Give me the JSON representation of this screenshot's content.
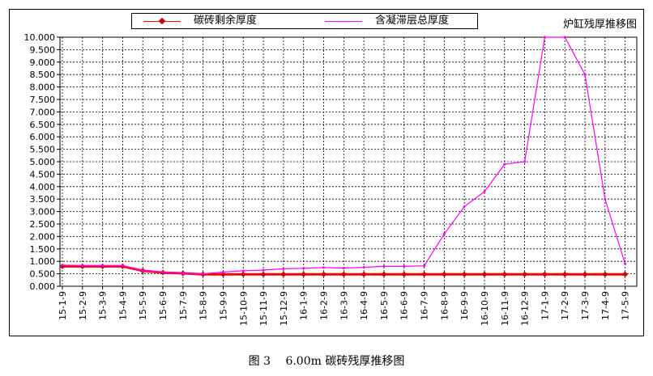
{
  "legend": {
    "series1_label": "碳砖剩余厚度",
    "series2_label": "含凝滞层总厚度"
  },
  "chart_title": "炉缸残厚推移图",
  "figure_caption": "图 3　 6.00m 碳砖残厚推移图",
  "colors": {
    "series1": "#ff0000",
    "series2": "#ff00ff",
    "grid": "#000000"
  },
  "chart_data": {
    "type": "line",
    "title": "炉缸残厚推移图",
    "xlabel": "",
    "ylabel": "",
    "ylim": [
      0,
      10
    ],
    "grid": true,
    "legend_position": "top",
    "y_ticks": [
      "0.000",
      "0.500",
      "1.000",
      "1.500",
      "2.000",
      "2.500",
      "3.000",
      "3.500",
      "4.000",
      "4.500",
      "5.000",
      "5.500",
      "6.000",
      "6.500",
      "7.000",
      "7.500",
      "8.000",
      "8.500",
      "9.000",
      "9.500",
      "10.000"
    ],
    "x_ticks": [
      "15-1-9",
      "15-2-9",
      "15-3-9",
      "15-4-9",
      "15-5-9",
      "15-6-9",
      "15-7-9",
      "15-8-9",
      "15-9-9",
      "15-10-9",
      "15-11-9",
      "15-12-9",
      "16-1-9",
      "16-2-9",
      "16-3-9",
      "16-4-9",
      "16-5-9",
      "16-6-9",
      "16-7-9",
      "16-8-9",
      "16-9-9",
      "16-10-9",
      "16-11-9",
      "16-12-9",
      "17-1-9",
      "17-2-9",
      "17-3-9",
      "17-4-9",
      "17-5-9"
    ],
    "series": [
      {
        "name": "碳砖剩余厚度",
        "points": [
          [
            "15-1-9",
            0.8
          ],
          [
            "15-2-9",
            0.8
          ],
          [
            "15-3-9",
            0.8
          ],
          [
            "15-4-9",
            0.8
          ],
          [
            "15-5-9",
            0.62
          ],
          [
            "15-6-9",
            0.55
          ],
          [
            "15-7-9",
            0.52
          ],
          [
            "15-8-9",
            0.48
          ],
          [
            "15-9-9",
            0.48
          ],
          [
            "15-10-9",
            0.48
          ],
          [
            "15-11-9",
            0.48
          ],
          [
            "15-12-9",
            0.48
          ],
          [
            "16-1-9",
            0.48
          ],
          [
            "16-2-9",
            0.48
          ],
          [
            "16-3-9",
            0.48
          ],
          [
            "16-4-9",
            0.48
          ],
          [
            "16-5-9",
            0.48
          ],
          [
            "16-6-9",
            0.48
          ],
          [
            "16-7-9",
            0.48
          ],
          [
            "16-8-9",
            0.48
          ],
          [
            "16-9-9",
            0.48
          ],
          [
            "16-10-9",
            0.48
          ],
          [
            "16-11-9",
            0.48
          ],
          [
            "16-12-9",
            0.48
          ],
          [
            "17-1-9",
            0.48
          ],
          [
            "17-2-9",
            0.48
          ],
          [
            "17-3-9",
            0.48
          ],
          [
            "17-4-9",
            0.48
          ],
          [
            "17-5-9",
            0.48
          ]
        ]
      },
      {
        "name": "含凝滞层总厚度",
        "points": [
          [
            "15-1-9",
            0.85
          ],
          [
            "15-2-9",
            0.83
          ],
          [
            "15-3-9",
            0.83
          ],
          [
            "15-4-9",
            0.83
          ],
          [
            "15-5-9",
            0.62
          ],
          [
            "15-6-9",
            0.57
          ],
          [
            "15-7-9",
            0.52
          ],
          [
            "15-8-9",
            0.5
          ],
          [
            "15-9-9",
            0.57
          ],
          [
            "15-10-9",
            0.62
          ],
          [
            "15-11-9",
            0.65
          ],
          [
            "15-12-9",
            0.7
          ],
          [
            "16-1-9",
            0.72
          ],
          [
            "16-2-9",
            0.75
          ],
          [
            "16-3-9",
            0.73
          ],
          [
            "16-4-9",
            0.76
          ],
          [
            "16-5-9",
            0.8
          ],
          [
            "16-6-9",
            0.8
          ],
          [
            "16-7-9",
            0.82
          ],
          [
            "16-8-9",
            2.1
          ],
          [
            "16-9-9",
            3.2
          ],
          [
            "16-10-9",
            3.8
          ],
          [
            "16-11-9",
            4.9
          ],
          [
            "16-12-9",
            5.0
          ],
          [
            "17-1-9",
            10.0
          ],
          [
            "17-2-9",
            10.0
          ],
          [
            "17-3-9",
            8.5
          ],
          [
            "17-4-9",
            3.5
          ],
          [
            "17-5-9",
            0.9
          ]
        ]
      }
    ]
  }
}
